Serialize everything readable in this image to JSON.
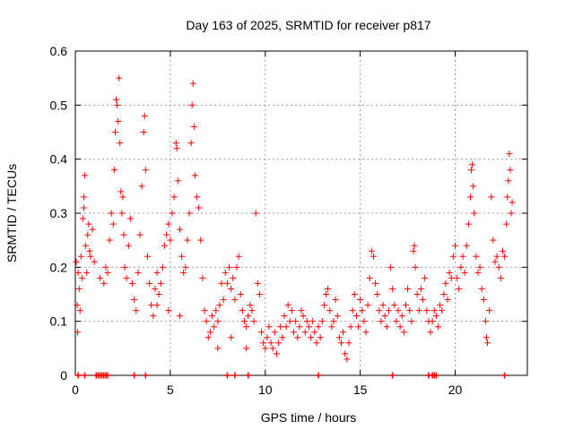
{
  "chart_data": {
    "type": "scatter",
    "title": "Day 163 of 2025, SRMTID for receiver p817",
    "xlabel": "GPS time / hours",
    "ylabel": "SRMTID / TECUs",
    "xlim": [
      0,
      23.8
    ],
    "ylim": [
      0,
      0.6
    ],
    "x_ticks": [
      0,
      5,
      10,
      15,
      20
    ],
    "y_ticks": [
      0,
      0.1,
      0.2,
      0.3,
      0.4,
      0.5,
      0.6
    ],
    "x_tick_labels": [
      "0",
      "5",
      "10",
      "15",
      "20"
    ],
    "y_tick_labels": [
      "0",
      "0.1",
      "0.2",
      "0.3",
      "0.4",
      "0.5",
      "0.6"
    ],
    "grid": true,
    "marker": "+",
    "color": "#ff0000",
    "series": [
      {
        "name": "SRMTID",
        "points": [
          [
            0.05,
            0.21
          ],
          [
            0.1,
            0.13
          ],
          [
            0.15,
            0.19
          ],
          [
            0.2,
            0.16
          ],
          [
            0.25,
            0.12
          ],
          [
            0.3,
            0.22
          ],
          [
            0.35,
            0.18
          ],
          [
            0.4,
            0.29
          ],
          [
            0.45,
            0.33
          ],
          [
            0.5,
            0.37
          ],
          [
            0.55,
            0.24
          ],
          [
            0.6,
            0.19
          ],
          [
            0.65,
            0.26
          ],
          [
            0.7,
            0.28
          ],
          [
            0.8,
            0.22
          ],
          [
            0.9,
            0.27
          ],
          [
            1.0,
            0.21
          ],
          [
            0.12,
            0.08
          ],
          [
            0.45,
            0.31
          ],
          [
            0.75,
            0.23
          ],
          [
            1.3,
            0.18
          ],
          [
            1.5,
            0.17
          ],
          [
            1.6,
            0.2
          ],
          [
            1.7,
            0.19
          ],
          [
            1.8,
            0.25
          ],
          [
            1.9,
            0.3
          ],
          [
            2.0,
            0.28
          ],
          [
            2.05,
            0.38
          ],
          [
            2.1,
            0.45
          ],
          [
            2.15,
            0.51
          ],
          [
            2.2,
            0.5
          ],
          [
            2.25,
            0.47
          ],
          [
            2.3,
            0.55
          ],
          [
            2.35,
            0.43
          ],
          [
            2.4,
            0.34
          ],
          [
            2.45,
            0.3
          ],
          [
            2.5,
            0.33
          ],
          [
            2.55,
            0.26
          ],
          [
            2.6,
            0.2
          ],
          [
            2.7,
            0.18
          ],
          [
            2.8,
            0.24
          ],
          [
            2.9,
            0.29
          ],
          [
            3.0,
            0.17
          ],
          [
            3.1,
            0.14
          ],
          [
            3.2,
            0.12
          ],
          [
            3.3,
            0.19
          ],
          [
            3.4,
            0.26
          ],
          [
            3.5,
            0.35
          ],
          [
            3.6,
            0.45
          ],
          [
            3.65,
            0.48
          ],
          [
            3.7,
            0.38
          ],
          [
            3.8,
            0.22
          ],
          [
            3.9,
            0.17
          ],
          [
            4.0,
            0.13
          ],
          [
            4.1,
            0.11
          ],
          [
            4.2,
            0.16
          ],
          [
            4.3,
            0.19
          ],
          [
            4.4,
            0.15
          ],
          [
            4.5,
            0.17
          ],
          [
            4.6,
            0.2
          ],
          [
            4.7,
            0.24
          ],
          [
            4.8,
            0.26
          ],
          [
            4.9,
            0.28
          ],
          [
            5.0,
            0.25
          ],
          [
            5.1,
            0.3
          ],
          [
            5.2,
            0.33
          ],
          [
            5.3,
            0.43
          ],
          [
            5.35,
            0.42
          ],
          [
            5.4,
            0.36
          ],
          [
            5.5,
            0.27
          ],
          [
            5.6,
            0.22
          ],
          [
            5.7,
            0.19
          ],
          [
            5.8,
            0.2
          ],
          [
            5.9,
            0.25
          ],
          [
            6.0,
            0.3
          ],
          [
            6.1,
            0.43
          ],
          [
            6.15,
            0.5
          ],
          [
            6.2,
            0.54
          ],
          [
            6.25,
            0.46
          ],
          [
            6.3,
            0.37
          ],
          [
            6.4,
            0.33
          ],
          [
            6.5,
            0.31
          ],
          [
            6.6,
            0.25
          ],
          [
            6.7,
            0.18
          ],
          [
            4.3,
            0.13
          ],
          [
            4.9,
            0.12
          ],
          [
            5.5,
            0.11
          ],
          [
            6.8,
            0.12
          ],
          [
            6.9,
            0.1
          ],
          [
            7.0,
            0.07
          ],
          [
            7.1,
            0.08
          ],
          [
            7.2,
            0.11
          ],
          [
            7.3,
            0.09
          ],
          [
            7.4,
            0.12
          ],
          [
            7.5,
            0.1
          ],
          [
            7.6,
            0.13
          ],
          [
            7.7,
            0.17
          ],
          [
            7.8,
            0.14
          ],
          [
            7.9,
            0.19
          ],
          [
            8.0,
            0.17
          ],
          [
            8.1,
            0.2
          ],
          [
            8.2,
            0.16
          ],
          [
            8.3,
            0.18
          ],
          [
            8.4,
            0.14
          ],
          [
            8.5,
            0.2
          ],
          [
            8.6,
            0.22
          ],
          [
            8.7,
            0.15
          ],
          [
            8.8,
            0.12
          ],
          [
            8.9,
            0.1
          ],
          [
            9.0,
            0.09
          ],
          [
            9.1,
            0.11
          ],
          [
            9.2,
            0.13
          ],
          [
            9.3,
            0.12
          ],
          [
            9.4,
            0.1
          ],
          [
            9.5,
            0.3
          ],
          [
            9.6,
            0.17
          ],
          [
            9.7,
            0.15
          ],
          [
            7.5,
            0.05
          ],
          [
            8.2,
            0.07
          ],
          [
            9.0,
            0.05
          ],
          [
            9.8,
            0.08
          ],
          [
            9.9,
            0.06
          ],
          [
            10.0,
            0.05
          ],
          [
            10.1,
            0.07
          ],
          [
            10.2,
            0.09
          ],
          [
            10.3,
            0.06
          ],
          [
            10.4,
            0.05
          ],
          [
            10.5,
            0.08
          ],
          [
            10.6,
            0.04
          ],
          [
            10.7,
            0.06
          ],
          [
            10.8,
            0.09
          ],
          [
            10.9,
            0.07
          ],
          [
            11.0,
            0.11
          ],
          [
            11.1,
            0.09
          ],
          [
            11.2,
            0.13
          ],
          [
            11.3,
            0.1
          ],
          [
            11.4,
            0.12
          ],
          [
            11.5,
            0.08
          ],
          [
            11.6,
            0.1
          ],
          [
            11.7,
            0.07
          ],
          [
            11.8,
            0.09
          ],
          [
            11.9,
            0.12
          ],
          [
            12.0,
            0.11
          ],
          [
            12.1,
            0.08
          ],
          [
            12.2,
            0.1
          ],
          [
            12.3,
            0.09
          ],
          [
            12.4,
            0.07
          ],
          [
            12.5,
            0.1
          ],
          [
            12.6,
            0.08
          ],
          [
            12.7,
            0.06
          ],
          [
            12.8,
            0.09
          ],
          [
            12.9,
            0.07
          ],
          [
            13.0,
            0.1
          ],
          [
            13.1,
            0.13
          ],
          [
            13.2,
            0.15
          ],
          [
            13.3,
            0.16
          ],
          [
            13.4,
            0.12
          ],
          [
            13.5,
            0.09
          ],
          [
            13.6,
            0.1
          ],
          [
            13.7,
            0.14
          ],
          [
            13.8,
            0.11
          ],
          [
            13.9,
            0.07
          ],
          [
            14.0,
            0.06
          ],
          [
            14.1,
            0.08
          ],
          [
            14.2,
            0.04
          ],
          [
            14.3,
            0.03
          ],
          [
            14.4,
            0.06
          ],
          [
            14.5,
            0.09
          ],
          [
            14.6,
            0.12
          ],
          [
            14.7,
            0.15
          ],
          [
            14.8,
            0.11
          ],
          [
            14.9,
            0.09
          ],
          [
            15.0,
            0.14
          ],
          [
            15.1,
            0.12
          ],
          [
            15.2,
            0.1
          ],
          [
            15.3,
            0.08
          ],
          [
            15.4,
            0.13
          ],
          [
            15.5,
            0.18
          ],
          [
            15.6,
            0.23
          ],
          [
            15.7,
            0.22
          ],
          [
            15.8,
            0.17
          ],
          [
            15.9,
            0.15
          ],
          [
            16.0,
            0.12
          ],
          [
            16.1,
            0.1
          ],
          [
            16.2,
            0.13
          ],
          [
            16.3,
            0.11
          ],
          [
            16.4,
            0.09
          ],
          [
            16.5,
            0.12
          ],
          [
            16.6,
            0.2
          ],
          [
            16.7,
            0.16
          ],
          [
            16.8,
            0.13
          ],
          [
            16.9,
            0.1
          ],
          [
            17.0,
            0.12
          ],
          [
            17.1,
            0.09
          ],
          [
            17.2,
            0.11
          ],
          [
            17.3,
            0.08
          ],
          [
            17.4,
            0.13
          ],
          [
            17.5,
            0.16
          ],
          [
            17.6,
            0.12
          ],
          [
            17.7,
            0.1
          ],
          [
            17.8,
            0.23
          ],
          [
            17.85,
            0.24
          ],
          [
            17.9,
            0.2
          ],
          [
            18.0,
            0.15
          ],
          [
            18.1,
            0.12
          ],
          [
            18.2,
            0.16
          ],
          [
            18.3,
            0.14
          ],
          [
            18.4,
            0.18
          ],
          [
            18.5,
            0.12
          ],
          [
            18.6,
            0.1
          ],
          [
            18.7,
            0.08
          ],
          [
            18.8,
            0.1
          ],
          [
            18.9,
            0.12
          ],
          [
            19.0,
            0.11
          ],
          [
            19.1,
            0.09
          ],
          [
            19.2,
            0.13
          ],
          [
            19.3,
            0.12
          ],
          [
            19.4,
            0.15
          ],
          [
            19.5,
            0.17
          ],
          [
            19.6,
            0.14
          ],
          [
            19.7,
            0.19
          ],
          [
            19.8,
            0.18
          ],
          [
            19.9,
            0.22
          ],
          [
            20.0,
            0.24
          ],
          [
            20.1,
            0.18
          ],
          [
            20.2,
            0.16
          ],
          [
            20.3,
            0.2
          ],
          [
            20.4,
            0.22
          ],
          [
            20.5,
            0.19
          ],
          [
            20.6,
            0.24
          ],
          [
            20.7,
            0.28
          ],
          [
            20.8,
            0.33
          ],
          [
            20.85,
            0.38
          ],
          [
            20.9,
            0.39
          ],
          [
            20.95,
            0.35
          ],
          [
            21.0,
            0.3
          ],
          [
            21.1,
            0.22
          ],
          [
            21.2,
            0.19
          ],
          [
            21.3,
            0.2
          ],
          [
            21.4,
            0.16
          ],
          [
            21.5,
            0.14
          ],
          [
            21.6,
            0.1
          ],
          [
            21.65,
            0.07
          ],
          [
            21.7,
            0.06
          ],
          [
            21.8,
            0.12
          ],
          [
            21.9,
            0.33
          ],
          [
            22.0,
            0.25
          ],
          [
            22.1,
            0.21
          ],
          [
            22.2,
            0.22
          ],
          [
            22.3,
            0.2
          ],
          [
            22.4,
            0.18
          ],
          [
            22.5,
            0.23
          ],
          [
            22.6,
            0.22
          ],
          [
            22.7,
            0.28
          ],
          [
            22.75,
            0.33
          ],
          [
            22.8,
            0.36
          ],
          [
            22.85,
            0.41
          ],
          [
            22.9,
            0.38
          ],
          [
            22.95,
            0.3
          ],
          [
            23.0,
            0.32
          ]
        ]
      }
    ],
    "zero_markers_x": [
      0.15,
      0.5,
      1.1,
      1.2,
      1.3,
      1.4,
      1.5,
      1.6,
      1.7,
      3.1,
      3.7,
      8.0,
      8.4,
      9.1,
      12.8,
      16.7,
      18.6,
      18.8,
      18.9,
      19.0,
      22.6
    ]
  }
}
